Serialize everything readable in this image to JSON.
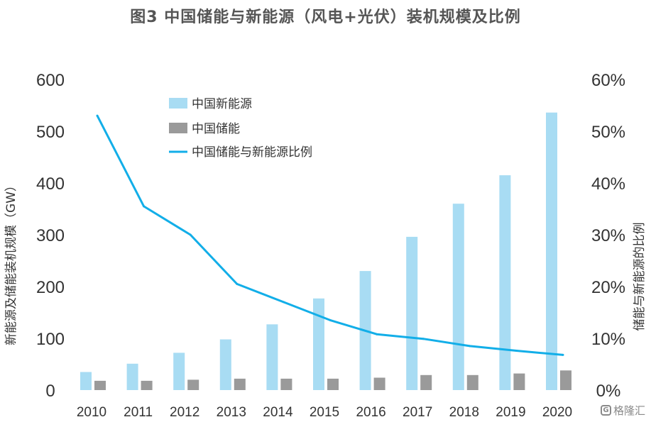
{
  "chart_data": {
    "type": "bar",
    "title": "图3 中国储能与新能源（风电+光伏）装机规模及比例",
    "categories": [
      "2010",
      "2011",
      "2012",
      "2013",
      "2014",
      "2015",
      "2016",
      "2017",
      "2018",
      "2019",
      "2020"
    ],
    "series": [
      {
        "name": "中国新能源",
        "kind": "bar",
        "axis": "left",
        "color": "#a8dcf3",
        "values": [
          35,
          51,
          72,
          98,
          127,
          177,
          230,
          296,
          360,
          415,
          536
        ]
      },
      {
        "name": "中国储能",
        "kind": "bar",
        "axis": "left",
        "color": "#9a9a9a",
        "values": [
          18,
          18,
          20,
          22,
          22,
          22,
          24,
          29,
          29,
          32,
          38
        ]
      },
      {
        "name": "中国储能与新能源比例",
        "kind": "line",
        "axis": "right",
        "color": "#12aee8",
        "values": [
          53,
          35.5,
          30,
          20.5,
          17,
          13.5,
          10.8,
          9.9,
          8.5,
          7.6,
          6.8
        ]
      }
    ],
    "ylabel": "新能源及储能装机规模（GW）",
    "y2label": "储能与新能源的比例",
    "ylim": [
      0,
      600
    ],
    "y2lim": [
      0,
      60
    ],
    "yticks": [
      "0",
      "100",
      "200",
      "300",
      "400",
      "500",
      "600"
    ],
    "y2ticks": [
      "0%",
      "10%",
      "20%",
      "30%",
      "40%",
      "50%",
      "60%"
    ],
    "legend_position": "top-left",
    "grid": false
  },
  "watermark": {
    "text": "格隆汇",
    "logo": "G"
  }
}
